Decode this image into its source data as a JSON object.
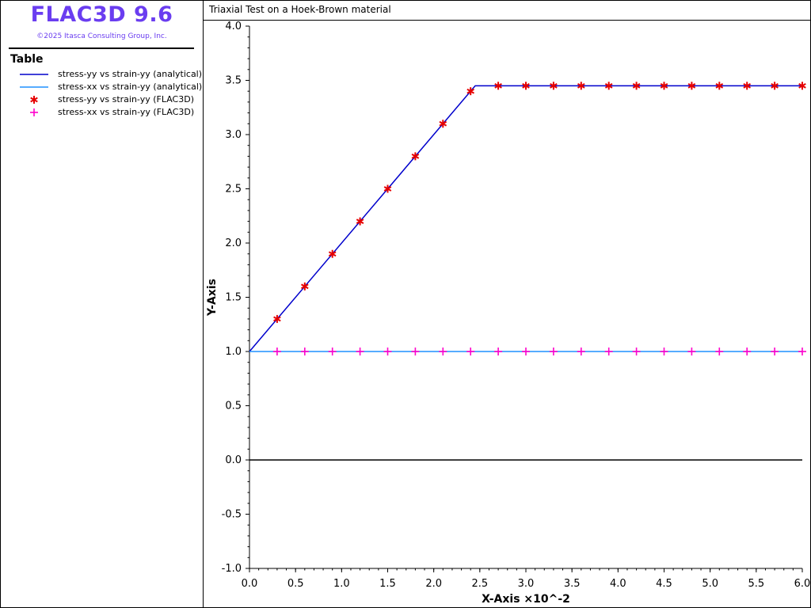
{
  "app": {
    "title": "FLAC3D 9.6",
    "copyright": "©2025 Itasca Consulting Group, Inc.",
    "brand_color": "#6a3df0"
  },
  "legend": {
    "title": "Table",
    "items": [
      {
        "label": "stress-yy vs strain-yy (analytical)",
        "symbol": "line",
        "color": "#0000cc"
      },
      {
        "label": "stress-xx vs strain-yy (analytical)",
        "symbol": "line",
        "color": "#1e90ff"
      },
      {
        "label": "stress-yy vs strain-yy (FLAC3D)",
        "symbol": "asterisk",
        "color": "#e60000"
      },
      {
        "label": "stress-xx vs strain-yy (FLAC3D)",
        "symbol": "plus",
        "color": "#ff00cc"
      }
    ]
  },
  "plot": {
    "title": "Triaxial Test on a Hoek-Brown material"
  },
  "chart_data": {
    "type": "line",
    "title": "Triaxial Test on a Hoek-Brown material",
    "xlabel": "X-Axis ×10^-2",
    "ylabel": "Y-Axis",
    "xlim": [
      0.0,
      6.0
    ],
    "ylim": [
      -1.0,
      4.0
    ],
    "x_ticks": [
      "0.0",
      "0.5",
      "1.0",
      "1.5",
      "2.0",
      "2.5",
      "3.0",
      "3.5",
      "4.0",
      "4.5",
      "5.0",
      "5.5",
      "6.0"
    ],
    "y_ticks": [
      "-1.0",
      "-0.5",
      "0.0",
      "0.5",
      "1.0",
      "1.5",
      "2.0",
      "2.5",
      "3.0",
      "3.5",
      "4.0"
    ],
    "series": [
      {
        "name": "stress-yy vs strain-yy (analytical)",
        "style": "line",
        "color": "#0000cc",
        "x": [
          0.0,
          2.45,
          6.0
        ],
        "y": [
          1.0,
          3.45,
          3.45
        ]
      },
      {
        "name": "stress-xx vs strain-yy (analytical)",
        "style": "line",
        "color": "#1e90ff",
        "x": [
          0.0,
          6.0
        ],
        "y": [
          1.0,
          1.0
        ]
      },
      {
        "name": "stress-yy vs strain-yy (FLAC3D)",
        "style": "asterisk",
        "color": "#e60000",
        "x": [
          0.3,
          0.6,
          0.9,
          1.2,
          1.5,
          1.8,
          2.1,
          2.4,
          2.7,
          3.0,
          3.3,
          3.6,
          3.9,
          4.2,
          4.5,
          4.8,
          5.1,
          5.4,
          5.7,
          6.0
        ],
        "y": [
          1.3,
          1.6,
          1.9,
          2.2,
          2.5,
          2.8,
          3.1,
          3.4,
          3.45,
          3.45,
          3.45,
          3.45,
          3.45,
          3.45,
          3.45,
          3.45,
          3.45,
          3.45,
          3.45,
          3.45
        ]
      },
      {
        "name": "stress-xx vs strain-yy (FLAC3D)",
        "style": "plus",
        "color": "#ff00cc",
        "x": [
          0.3,
          0.6,
          0.9,
          1.2,
          1.5,
          1.8,
          2.1,
          2.4,
          2.7,
          3.0,
          3.3,
          3.6,
          3.9,
          4.2,
          4.5,
          4.8,
          5.1,
          5.4,
          5.7,
          6.0
        ],
        "y": [
          1.0,
          1.0,
          1.0,
          1.0,
          1.0,
          1.0,
          1.0,
          1.0,
          1.0,
          1.0,
          1.0,
          1.0,
          1.0,
          1.0,
          1.0,
          1.0,
          1.0,
          1.0,
          1.0,
          1.0
        ]
      }
    ],
    "zero_line": {
      "y": 0.0,
      "color": "#000000"
    }
  }
}
